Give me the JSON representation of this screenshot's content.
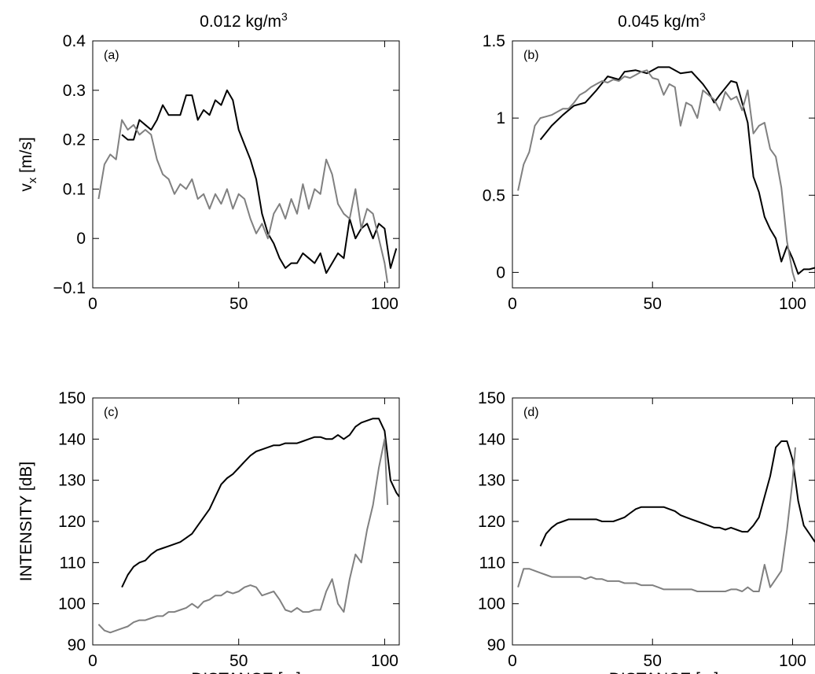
{
  "column_titles": [
    {
      "text": "0.012 kg/m",
      "sup": "3"
    },
    {
      "text": "0.045 kg/m",
      "sup": "3"
    }
  ],
  "colors": {
    "series_black": "#000000",
    "series_gray": "#808080"
  },
  "chart_data": [
    {
      "type": "line",
      "panel": "(a)",
      "xlim": [
        0,
        105
      ],
      "ylim": [
        -0.1,
        0.4
      ],
      "xticks": [
        0,
        50,
        100
      ],
      "yticks": [
        -0.1,
        0,
        0.1,
        0.2,
        0.3,
        0.4
      ],
      "ytick_labels": [
        "−0.1",
        "0",
        "0.1",
        "0.2",
        "0.3",
        "0.4"
      ],
      "ylabel": {
        "base": "v",
        "sub": "x",
        "unit": " [m/s]"
      },
      "xlabel": "",
      "series": [
        {
          "color": "black",
          "x": [
            10,
            12,
            14,
            16,
            18,
            20,
            22,
            24,
            26,
            28,
            30,
            32,
            34,
            36,
            38,
            40,
            42,
            44,
            46,
            48,
            50,
            52,
            54,
            56,
            58,
            60,
            62,
            64,
            66,
            68,
            70,
            72,
            74,
            76,
            78,
            80,
            82,
            84,
            86,
            88,
            90,
            92,
            94,
            96,
            98,
            100,
            102,
            104
          ],
          "y": [
            0.21,
            0.2,
            0.2,
            0.24,
            0.23,
            0.22,
            0.24,
            0.27,
            0.25,
            0.25,
            0.25,
            0.29,
            0.29,
            0.24,
            0.26,
            0.25,
            0.28,
            0.27,
            0.3,
            0.28,
            0.22,
            0.19,
            0.16,
            0.12,
            0.05,
            0.01,
            -0.01,
            -0.04,
            -0.06,
            -0.05,
            -0.05,
            -0.03,
            -0.04,
            -0.05,
            -0.03,
            -0.07,
            -0.05,
            -0.03,
            -0.04,
            0.04,
            0.0,
            0.02,
            0.03,
            0.0,
            0.03,
            0.02,
            -0.06,
            -0.02
          ]
        },
        {
          "color": "gray",
          "x": [
            2,
            4,
            6,
            8,
            10,
            12,
            14,
            16,
            18,
            20,
            22,
            24,
            26,
            28,
            30,
            32,
            34,
            36,
            38,
            40,
            42,
            44,
            46,
            48,
            50,
            52,
            54,
            56,
            58,
            60,
            62,
            64,
            66,
            68,
            70,
            72,
            74,
            76,
            78,
            80,
            82,
            84,
            86,
            88,
            90,
            92,
            94,
            96,
            98,
            100,
            101
          ],
          "y": [
            0.08,
            0.15,
            0.17,
            0.16,
            0.24,
            0.22,
            0.23,
            0.21,
            0.22,
            0.21,
            0.16,
            0.13,
            0.12,
            0.09,
            0.11,
            0.1,
            0.12,
            0.08,
            0.09,
            0.06,
            0.09,
            0.07,
            0.1,
            0.06,
            0.09,
            0.08,
            0.04,
            0.01,
            0.03,
            0.0,
            0.05,
            0.07,
            0.04,
            0.08,
            0.05,
            0.11,
            0.06,
            0.1,
            0.09,
            0.16,
            0.13,
            0.07,
            0.05,
            0.04,
            0.1,
            0.02,
            0.06,
            0.05,
            0.0,
            -0.05,
            -0.09
          ]
        }
      ]
    },
    {
      "type": "line",
      "panel": "(b)",
      "xlim": [
        0,
        108
      ],
      "ylim": [
        -0.1,
        1.5
      ],
      "xticks": [
        0,
        50,
        100
      ],
      "yticks": [
        0,
        0.5,
        1,
        1.5
      ],
      "ytick_labels": [
        "0",
        "0.5",
        "1",
        "1.5"
      ],
      "xlabel": "",
      "series": [
        {
          "color": "black",
          "x": [
            10,
            14,
            18,
            22,
            26,
            30,
            34,
            38,
            40,
            44,
            48,
            52,
            56,
            60,
            64,
            68,
            70,
            72,
            74,
            78,
            80,
            82,
            84,
            86,
            88,
            90,
            92,
            94,
            96,
            98,
            100,
            102,
            104,
            106,
            108
          ],
          "y": [
            0.86,
            0.95,
            1.02,
            1.08,
            1.1,
            1.18,
            1.27,
            1.25,
            1.3,
            1.31,
            1.29,
            1.33,
            1.33,
            1.29,
            1.3,
            1.22,
            1.17,
            1.1,
            1.15,
            1.24,
            1.23,
            1.1,
            0.97,
            0.62,
            0.52,
            0.36,
            0.28,
            0.22,
            0.07,
            0.17,
            0.09,
            -0.01,
            0.02,
            0.02,
            0.03
          ]
        },
        {
          "color": "gray",
          "x": [
            2,
            4,
            6,
            8,
            10,
            12,
            14,
            16,
            18,
            20,
            22,
            24,
            26,
            28,
            30,
            32,
            34,
            36,
            38,
            40,
            42,
            44,
            46,
            48,
            50,
            52,
            54,
            56,
            58,
            60,
            62,
            64,
            66,
            68,
            70,
            72,
            74,
            76,
            78,
            80,
            82,
            84,
            86,
            88,
            90,
            92,
            94,
            96,
            98,
            100,
            101
          ],
          "y": [
            0.53,
            0.7,
            0.78,
            0.95,
            1.0,
            1.01,
            1.02,
            1.04,
            1.06,
            1.06,
            1.1,
            1.15,
            1.17,
            1.2,
            1.22,
            1.24,
            1.23,
            1.25,
            1.24,
            1.27,
            1.26,
            1.28,
            1.3,
            1.31,
            1.26,
            1.25,
            1.15,
            1.22,
            1.2,
            0.95,
            1.1,
            1.08,
            1.0,
            1.18,
            1.15,
            1.12,
            1.05,
            1.17,
            1.12,
            1.14,
            1.05,
            1.18,
            0.9,
            0.95,
            0.97,
            0.8,
            0.75,
            0.55,
            0.2,
            0.0,
            -0.06
          ]
        }
      ]
    },
    {
      "type": "line",
      "panel": "(c)",
      "xlim": [
        0,
        105
      ],
      "ylim": [
        90,
        150
      ],
      "xticks": [
        0,
        50,
        100
      ],
      "yticks": [
        90,
        100,
        110,
        120,
        130,
        140,
        150
      ],
      "ytick_labels": [
        "90",
        "100",
        "110",
        "120",
        "130",
        "140",
        "150"
      ],
      "ylabel": {
        "base": "INTENSITY [dB]",
        "sub": "",
        "unit": ""
      },
      "xlabel": "DISTANCE [m]",
      "series": [
        {
          "color": "black",
          "x": [
            10,
            12,
            14,
            16,
            18,
            20,
            22,
            24,
            26,
            28,
            30,
            32,
            34,
            36,
            38,
            40,
            42,
            44,
            46,
            48,
            50,
            52,
            54,
            56,
            58,
            60,
            62,
            64,
            66,
            68,
            70,
            72,
            74,
            76,
            78,
            80,
            82,
            84,
            86,
            88,
            90,
            92,
            94,
            96,
            98,
            100,
            102,
            104,
            105
          ],
          "y": [
            104,
            107,
            109,
            110,
            110.5,
            112,
            113,
            113.5,
            114,
            114.5,
            115,
            116,
            117,
            119,
            121,
            123,
            126,
            129,
            130.5,
            131.5,
            133,
            134.5,
            136,
            137,
            137.5,
            138,
            138.5,
            138.5,
            139,
            139,
            139,
            139.5,
            140,
            140.5,
            140.5,
            140,
            140,
            141,
            140,
            141,
            143,
            144,
            144.5,
            145,
            145,
            142,
            130,
            127,
            126
          ]
        },
        {
          "color": "gray",
          "x": [
            2,
            4,
            6,
            8,
            10,
            12,
            14,
            16,
            18,
            20,
            22,
            24,
            26,
            28,
            30,
            32,
            34,
            36,
            38,
            40,
            42,
            44,
            46,
            48,
            50,
            52,
            54,
            56,
            58,
            60,
            62,
            64,
            66,
            68,
            70,
            72,
            74,
            76,
            78,
            80,
            82,
            84,
            86,
            88,
            90,
            92,
            94,
            96,
            98,
            100,
            101
          ],
          "y": [
            95,
            93.5,
            93,
            93.5,
            94,
            94.5,
            95.5,
            96,
            96,
            96.5,
            97,
            97,
            98,
            98,
            98.5,
            99,
            100,
            99,
            100.5,
            101,
            102,
            102,
            103,
            102.5,
            103,
            104,
            104.5,
            104,
            102,
            102.5,
            103,
            101,
            98.5,
            98,
            99,
            98,
            98,
            98.5,
            98.5,
            103,
            106,
            100,
            98,
            106,
            112,
            110,
            118,
            124,
            133,
            140,
            124
          ]
        }
      ]
    },
    {
      "type": "line",
      "panel": "(d)",
      "xlim": [
        0,
        108
      ],
      "ylim": [
        90,
        150
      ],
      "xticks": [
        0,
        50,
        100
      ],
      "yticks": [
        90,
        100,
        110,
        120,
        130,
        140,
        150
      ],
      "ytick_labels": [
        "90",
        "100",
        "110",
        "120",
        "130",
        "140",
        "150"
      ],
      "xlabel": "DISTANCE [m]",
      "series": [
        {
          "color": "black",
          "x": [
            10,
            12,
            14,
            16,
            18,
            20,
            22,
            24,
            26,
            28,
            30,
            32,
            34,
            36,
            38,
            40,
            42,
            44,
            46,
            48,
            50,
            52,
            54,
            56,
            58,
            60,
            62,
            64,
            66,
            68,
            70,
            72,
            74,
            76,
            78,
            80,
            82,
            84,
            86,
            88,
            90,
            92,
            94,
            96,
            98,
            100,
            102,
            104,
            106,
            108
          ],
          "y": [
            114,
            117,
            118.5,
            119.5,
            120,
            120.5,
            120.5,
            120.5,
            120.5,
            120.5,
            120.5,
            120,
            120,
            120,
            120.5,
            121,
            122,
            123,
            123.5,
            123.5,
            123.5,
            123.5,
            123.5,
            123,
            122.5,
            121.5,
            121,
            120.5,
            120,
            119.5,
            119,
            118.5,
            118.5,
            118,
            118.5,
            118,
            117.5,
            117.5,
            119,
            121,
            126,
            131,
            138,
            139.5,
            139.5,
            135,
            125,
            119,
            117,
            115
          ]
        },
        {
          "color": "gray",
          "x": [
            2,
            4,
            6,
            8,
            10,
            12,
            14,
            16,
            18,
            20,
            22,
            24,
            26,
            28,
            30,
            32,
            34,
            36,
            38,
            40,
            42,
            44,
            46,
            48,
            50,
            52,
            54,
            56,
            58,
            60,
            62,
            64,
            66,
            68,
            70,
            72,
            74,
            76,
            78,
            80,
            82,
            84,
            86,
            88,
            90,
            92,
            94,
            96,
            98,
            100,
            101
          ],
          "y": [
            104,
            108.5,
            108.5,
            108,
            107.5,
            107,
            106.5,
            106.5,
            106.5,
            106.5,
            106.5,
            106.5,
            106,
            106.5,
            106,
            106,
            105.5,
            105.5,
            105.5,
            105,
            105,
            105,
            104.5,
            104.5,
            104.5,
            104,
            103.5,
            103.5,
            103.5,
            103.5,
            103.5,
            103.5,
            103,
            103,
            103,
            103,
            103,
            103,
            103.5,
            103.5,
            103,
            104,
            103,
            103,
            109.5,
            104,
            106,
            108,
            118,
            130,
            138
          ]
        }
      ]
    }
  ]
}
